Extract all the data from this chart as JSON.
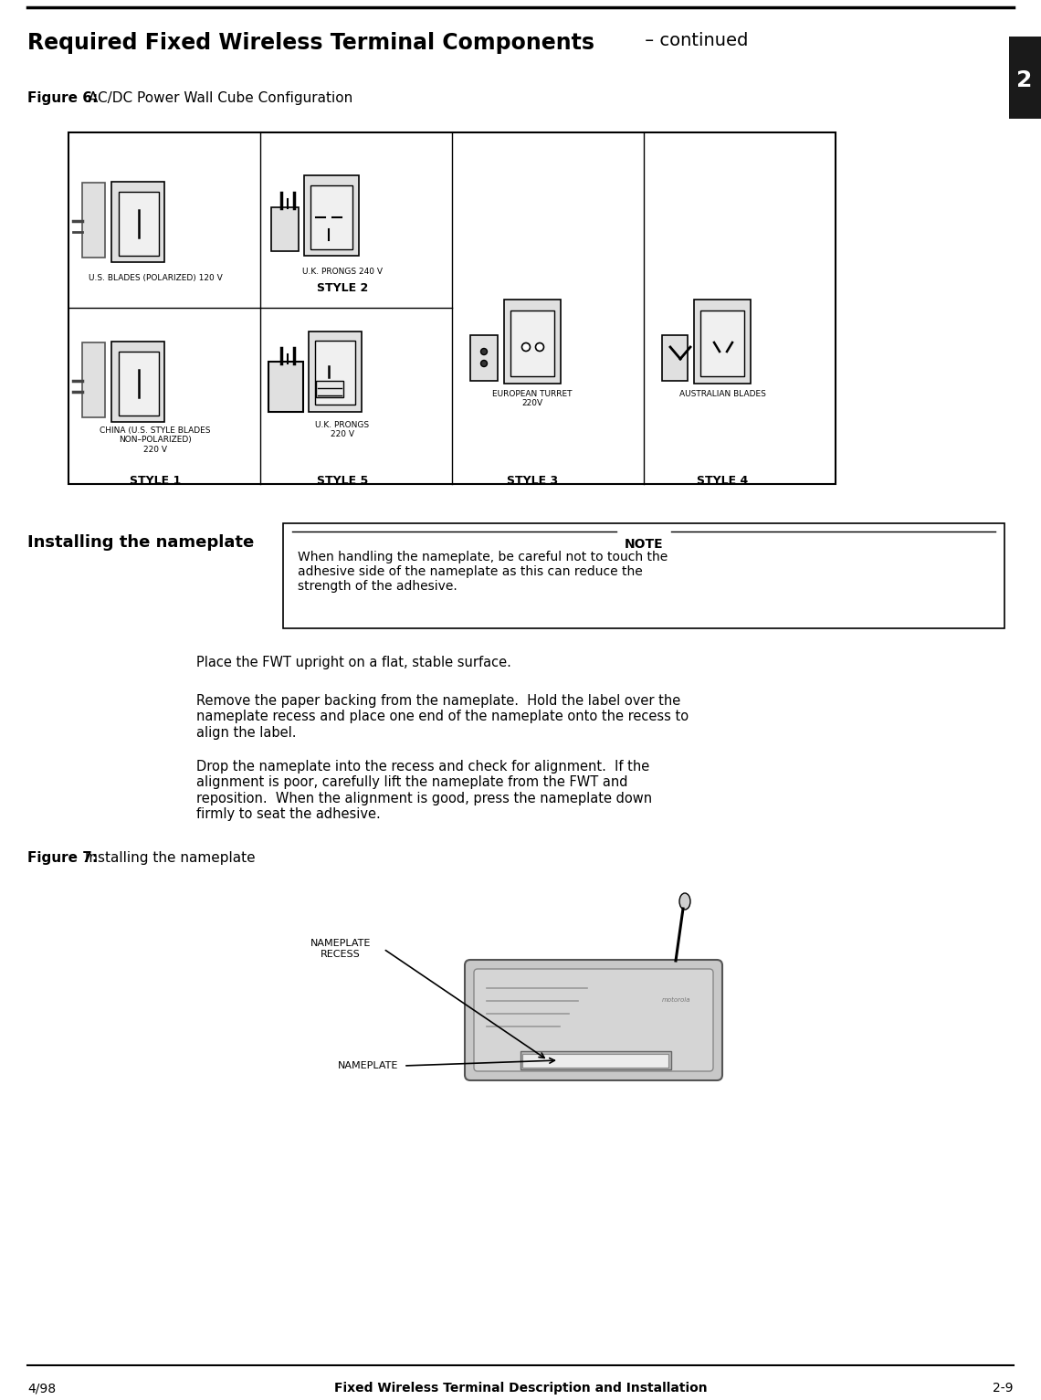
{
  "title_bold": "Required Fixed Wireless Terminal Components",
  "title_suffix": " – continued",
  "fig6_label": "Figure 6:",
  "fig6_text": " AC/DC Power Wall Cube Configuration",
  "fig7_label": "Figure 7:",
  "fig7_text": " Installing the nameplate",
  "installing_header": "Installing the nameplate",
  "note_header": "NOTE",
  "note_text": "When handling the nameplate, be careful not to touch the\nadhesive side of the nameplate as this can reduce the\nstrength of the adhesive.",
  "para1": "Place the FWT upright on a flat, stable surface.",
  "para2": "Remove the paper backing from the nameplate.  Hold the label over the\nnameplate recess and place one end of the nameplate onto the recess to\nalign the label.",
  "para3": "Drop the nameplate into the recess and check for alignment.  If the\nalignment is poor, carefully lift the nameplate from the FWT and\nreposition.  When the alignment is good, press the nameplate down\nfirmly to seat the adhesive.",
  "footer_left": "4/98",
  "footer_center": "Fixed Wireless Terminal Description and Installation",
  "footer_right": "2-9",
  "style1_label": "STYLE 1",
  "style2_label": "STYLE 2",
  "style3_label": "STYLE 3",
  "style4_label": "STYLE 4",
  "style5_label": "STYLE 5",
  "style1_desc": "U.S. BLADES (POLARIZED) 120 V",
  "style1_desc2": "CHINA (U.S. STYLE BLADES\nNON–POLARIZED)\n220 V",
  "style2_desc": "U.K. PRONGS 240 V",
  "style3_desc": "EUROPEAN TURRET\n220V",
  "style4_desc": "AUSTRALIAN BLADES",
  "style5_desc": "U.K. PRONGS\n220 V",
  "nameplate_label": "NAMEPLATE",
  "nameplate_recess_label": "NAMEPLATE\nRECESS",
  "tab_text": "2",
  "bg_color": "#ffffff",
  "line_color": "#000000",
  "gray_light": "#d0d0d0",
  "gray_medium": "#a0a0a0"
}
